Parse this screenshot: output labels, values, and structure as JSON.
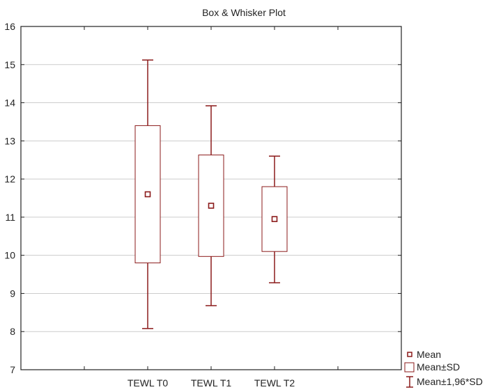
{
  "chart_data": {
    "type": "box",
    "title": "Box & Whisker Plot",
    "categories": [
      "TEWL T0",
      "TEWL T1",
      "TEWL T2"
    ],
    "mean": [
      11.6,
      11.3,
      10.95
    ],
    "mean_minus_sd": [
      9.8,
      9.97,
      10.1
    ],
    "mean_plus_sd": [
      13.4,
      12.63,
      11.8
    ],
    "mean_minus_1_96sd": [
      8.08,
      8.68,
      9.28
    ],
    "mean_plus_1_96sd": [
      15.12,
      13.92,
      12.6
    ],
    "ylim": [
      7,
      16
    ],
    "yticks": [
      "7",
      "8",
      "9",
      "10",
      "11",
      "12",
      "13",
      "14",
      "15",
      "16"
    ],
    "grid": true,
    "legend_position": "bottom-right",
    "legend": [
      "Mean",
      "Mean±SD",
      "Mean±1,96*SD"
    ],
    "color": "#8b1a1a"
  }
}
